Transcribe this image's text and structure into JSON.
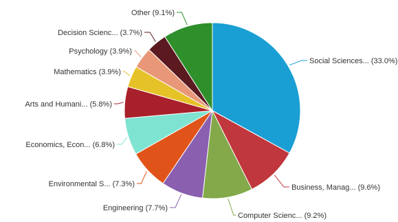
{
  "chart_data": {
    "type": "pie",
    "title": "",
    "slices": [
      {
        "label": "Social Sciences... (33.0%)",
        "value": 33.0,
        "color": "#1a9fd4"
      },
      {
        "label": "Business, Manag... (9.6%)",
        "value": 9.6,
        "color": "#c0373d"
      },
      {
        "label": "Computer Scienc... (9.2%)",
        "value": 9.2,
        "color": "#83a94a"
      },
      {
        "label": "Engineering (7.7%)",
        "value": 7.7,
        "color": "#8a5fb0"
      },
      {
        "label": "Environmental S... (7.3%)",
        "value": 7.3,
        "color": "#e0541a"
      },
      {
        "label": "Economics, Econ... (6.8%)",
        "value": 6.8,
        "color": "#7fe3d2"
      },
      {
        "label": "Arts and Humani... (5.8%)",
        "value": 5.8,
        "color": "#a8202a"
      },
      {
        "label": "Mathematics (3.9%)",
        "value": 3.9,
        "color": "#e6c229"
      },
      {
        "label": "Psychology (3.9%)",
        "value": 3.9,
        "color": "#e89878"
      },
      {
        "label": "Decision Scienc... (3.7%)",
        "value": 3.7,
        "color": "#5a1a1f"
      },
      {
        "label": "Other (9.1%)",
        "value": 9.1,
        "color": "#2e8f2b"
      }
    ]
  }
}
